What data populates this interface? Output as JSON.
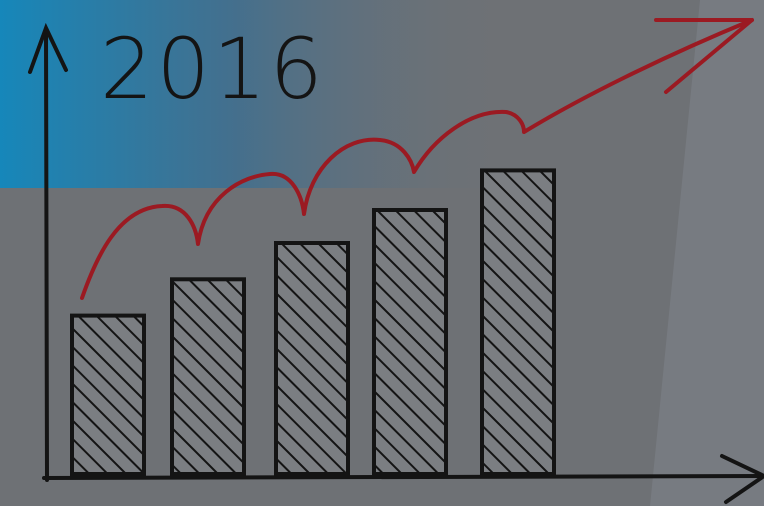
{
  "title": "2016",
  "colors": {
    "background": "#6e7175",
    "accent_blue": "#1a86b7",
    "ink": "#141414",
    "arrow_red": "#9b1a22"
  },
  "sketch": {
    "bar_count": 5,
    "bar_relative_heights": [
      0.48,
      0.59,
      0.7,
      0.8,
      0.92
    ],
    "bar_fill": "hatched",
    "trend_arrow": "wavy-upward"
  }
}
